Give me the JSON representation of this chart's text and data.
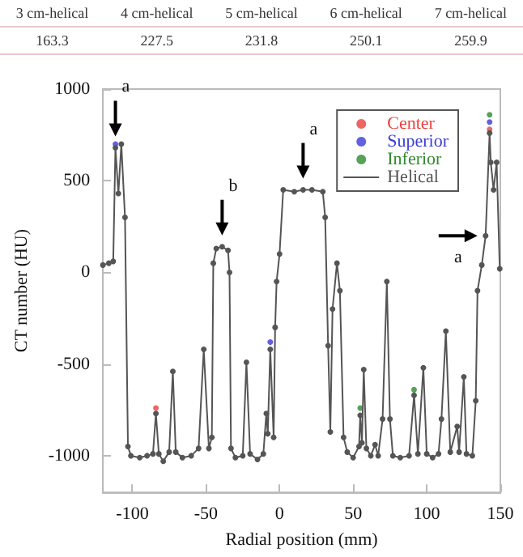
{
  "chart_data": [
    {
      "type": "other",
      "annotations": [
        "3 cm-helical",
        "4 cm-helical",
        "5 cm-helical",
        "6 cm-helical",
        "7 cm-helical",
        "163.3",
        "227.5",
        "231.8",
        "250.1",
        "259.9"
      ]
    },
    {
      "type": "line",
      "xlabel": "Radial position (mm)",
      "ylabel": "CT number (HU)",
      "x": [
        -120,
        -116,
        -113,
        -111.5,
        -109.5,
        -107.5,
        -105,
        -103,
        -101,
        -95,
        -90,
        -86,
        -84,
        -82,
        -79,
        -75,
        -72.5,
        -70.5,
        -66,
        -60,
        -55,
        -51.5,
        -48,
        -46,
        -45,
        -43,
        -39,
        -35,
        -34,
        -33,
        -30,
        -25,
        -22.5,
        -20,
        -15,
        -11,
        -9,
        -8,
        -6.3,
        -4,
        -3,
        -2,
        0,
        2.5,
        10,
        16,
        22,
        29.4,
        31,
        33,
        34.5,
        36,
        39,
        41,
        43.5,
        46,
        50,
        54,
        54.8,
        56,
        57.2,
        59,
        62,
        64.9,
        67,
        70,
        72.9,
        75,
        77,
        82,
        88,
        91.4,
        94,
        97.7,
        100,
        104,
        108,
        110,
        113,
        116,
        120.7,
        122,
        125.2,
        127,
        131,
        133.3,
        134.5,
        137.4,
        140,
        142.7,
        143.5,
        145.4,
        147.5,
        149.6
      ],
      "series": [
        {
          "name": "Center",
          "type": "scatter",
          "color": "#e8403c",
          "values": [
            null,
            null,
            null,
            null,
            null,
            null,
            null,
            null,
            null,
            null,
            null,
            null,
            -740,
            null,
            null,
            null,
            null,
            null,
            null,
            null,
            null,
            null,
            null,
            null,
            null,
            null,
            null,
            null,
            null,
            null,
            null,
            null,
            null,
            null,
            null,
            null,
            null,
            null,
            null,
            null,
            null,
            null,
            null,
            null,
            null,
            null,
            null,
            null,
            null,
            null,
            null,
            null,
            null,
            null,
            null,
            null,
            null,
            null,
            null,
            null,
            null,
            null,
            null,
            null,
            null,
            null,
            null,
            null,
            null,
            null,
            null,
            null,
            null,
            null,
            null,
            null,
            null,
            null,
            null,
            null,
            null,
            null,
            null,
            null,
            null,
            null,
            null,
            null,
            null,
            780,
            null,
            null,
            null,
            null
          ]
        },
        {
          "name": "Superior",
          "type": "scatter",
          "color": "#3a3ad8",
          "values": [
            null,
            null,
            null,
            700,
            null,
            null,
            null,
            null,
            null,
            null,
            null,
            null,
            null,
            null,
            null,
            null,
            null,
            null,
            null,
            null,
            null,
            null,
            null,
            null,
            null,
            null,
            null,
            null,
            null,
            null,
            null,
            null,
            null,
            null,
            null,
            null,
            null,
            null,
            -380,
            null,
            null,
            null,
            null,
            null,
            null,
            null,
            null,
            null,
            null,
            null,
            null,
            null,
            null,
            null,
            null,
            null,
            null,
            null,
            null,
            null,
            null,
            null,
            null,
            null,
            null,
            null,
            null,
            null,
            null,
            null,
            null,
            null,
            null,
            null,
            null,
            null,
            null,
            null,
            null,
            null,
            null,
            null,
            null,
            null,
            null,
            null,
            null,
            null,
            null,
            820,
            null,
            null,
            null,
            null
          ]
        },
        {
          "name": "Inferior",
          "type": "scatter",
          "color": "#2e8a2e",
          "values": [
            null,
            null,
            null,
            null,
            null,
            null,
            null,
            null,
            null,
            null,
            null,
            null,
            null,
            null,
            null,
            null,
            null,
            null,
            null,
            null,
            null,
            null,
            null,
            null,
            null,
            null,
            null,
            null,
            null,
            null,
            null,
            null,
            null,
            null,
            null,
            null,
            null,
            null,
            null,
            null,
            null,
            null,
            null,
            null,
            null,
            null,
            null,
            null,
            null,
            null,
            null,
            null,
            null,
            null,
            null,
            null,
            null,
            null,
            -740,
            null,
            null,
            null,
            null,
            null,
            null,
            null,
            null,
            null,
            null,
            null,
            null,
            -640,
            null,
            null,
            null,
            null,
            null,
            null,
            null,
            null,
            null,
            null,
            null,
            null,
            null,
            null,
            null,
            null,
            null,
            860,
            null,
            null,
            null,
            null
          ]
        },
        {
          "name": "Helical",
          "color": "#555555",
          "values": [
            40,
            50,
            60,
            680,
            430,
            700,
            300,
            -950,
            -1000,
            -1010,
            -1000,
            -990,
            -770,
            -990,
            -1030,
            -980,
            -540,
            -980,
            -1010,
            -1000,
            -960,
            -420,
            -960,
            -900,
            50,
            130,
            140,
            120,
            0,
            -960,
            -1010,
            -1000,
            -490,
            -990,
            -1020,
            -990,
            -770,
            -880,
            -420,
            -900,
            -300,
            -50,
            100,
            450,
            440,
            450,
            450,
            440,
            300,
            -400,
            -870,
            -200,
            50,
            -100,
            -900,
            -980,
            -1010,
            -950,
            -780,
            -930,
            -530,
            -960,
            -1000,
            -940,
            -1000,
            -800,
            -50,
            -800,
            -1000,
            -1010,
            -1000,
            -670,
            -990,
            -520,
            -990,
            -1010,
            -990,
            -800,
            -320,
            -980,
            -840,
            -980,
            -570,
            -990,
            -1000,
            -700,
            -100,
            40,
            200,
            760,
            600,
            450,
            600,
            20
          ]
        }
      ],
      "xlim": [
        -120,
        150
      ],
      "xticks": [
        -100,
        -50,
        0,
        50,
        100,
        150
      ],
      "ylim": [
        -1200,
        1000
      ],
      "yticks": [
        -1000,
        -500,
        0,
        500,
        1000
      ],
      "legend": "top right",
      "marker": "circle",
      "line_style": "solid",
      "annotations": [
        {
          "text": "a",
          "x": -111.5,
          "y": 680
        },
        {
          "text": "b",
          "x": -39,
          "y": 140
        },
        {
          "text": "a",
          "x": 16,
          "y": 450
        },
        {
          "text": "a",
          "x": 140,
          "y": 200
        }
      ]
    }
  ]
}
